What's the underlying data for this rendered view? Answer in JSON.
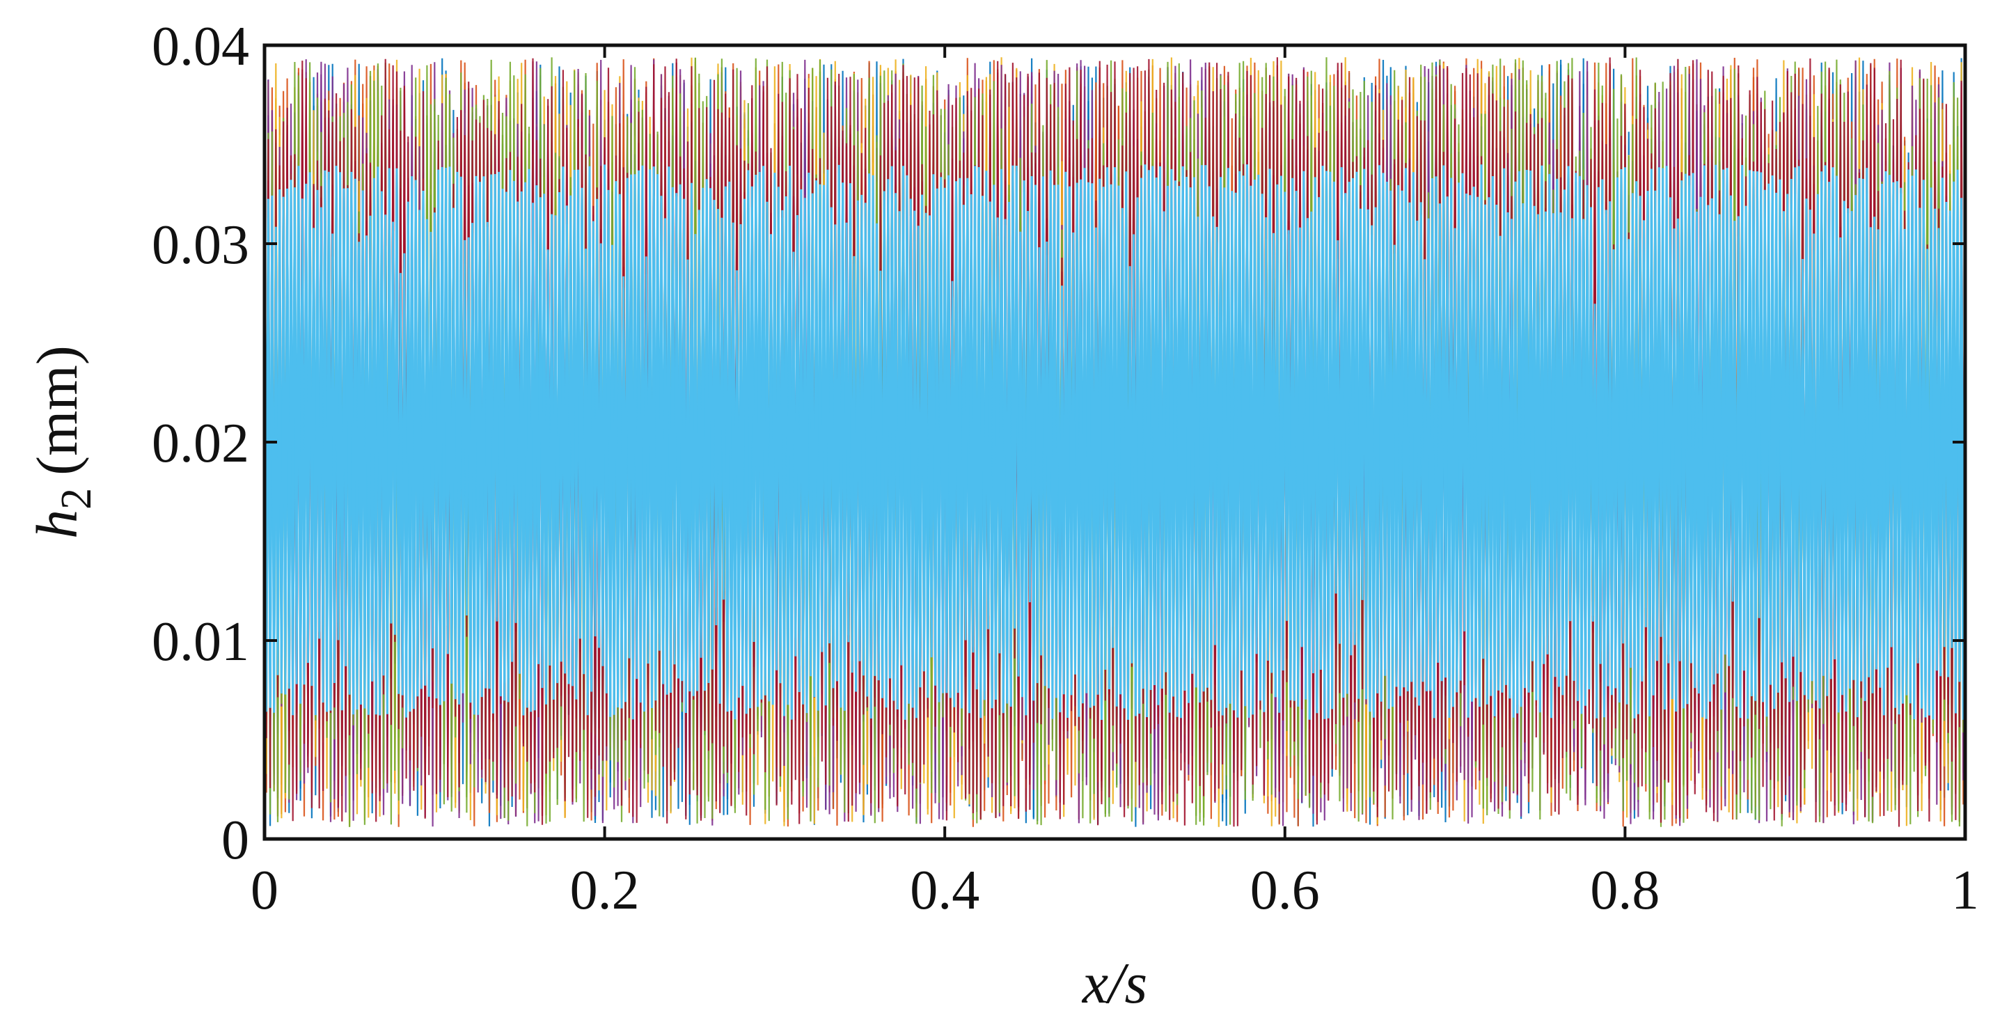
{
  "chart_data": {
    "type": "line",
    "xlabel": "x/s",
    "ylabel": {
      "symbol": "h",
      "subscript": "2",
      "unit": "(mm)"
    },
    "xlim": [
      0,
      1
    ],
    "ylim": [
      0,
      0.04
    ],
    "x_ticks": [
      {
        "value": 0,
        "label": "0"
      },
      {
        "value": 0.2,
        "label": "0.2"
      },
      {
        "value": 0.4,
        "label": "0.4"
      },
      {
        "value": 0.6,
        "label": "0.6"
      },
      {
        "value": 0.8,
        "label": "0.8"
      },
      {
        "value": 1,
        "label": "1"
      }
    ],
    "y_ticks": [
      {
        "value": 0,
        "label": "0"
      },
      {
        "value": 0.01,
        "label": "0.01"
      },
      {
        "value": 0.02,
        "label": "0.02"
      },
      {
        "value": 0.03,
        "label": "0.03"
      },
      {
        "value": 0.04,
        "label": "0.04"
      }
    ],
    "grid": false,
    "legend": "none",
    "series_description": "Many overlapping rapidly oscillating traces of h2 versus x/s, filling the band from 0 to about 0.04 mm with a dense core near 0.02 mm",
    "series_value_range": [
      0,
      0.04
    ],
    "series_center": 0.02,
    "series_colors": [
      "#0072bd",
      "#d95319",
      "#edb120",
      "#7e2f8e",
      "#77ac30",
      "#4dbeee",
      "#a2142f"
    ],
    "dominant_core_color": "#4dbeee"
  }
}
